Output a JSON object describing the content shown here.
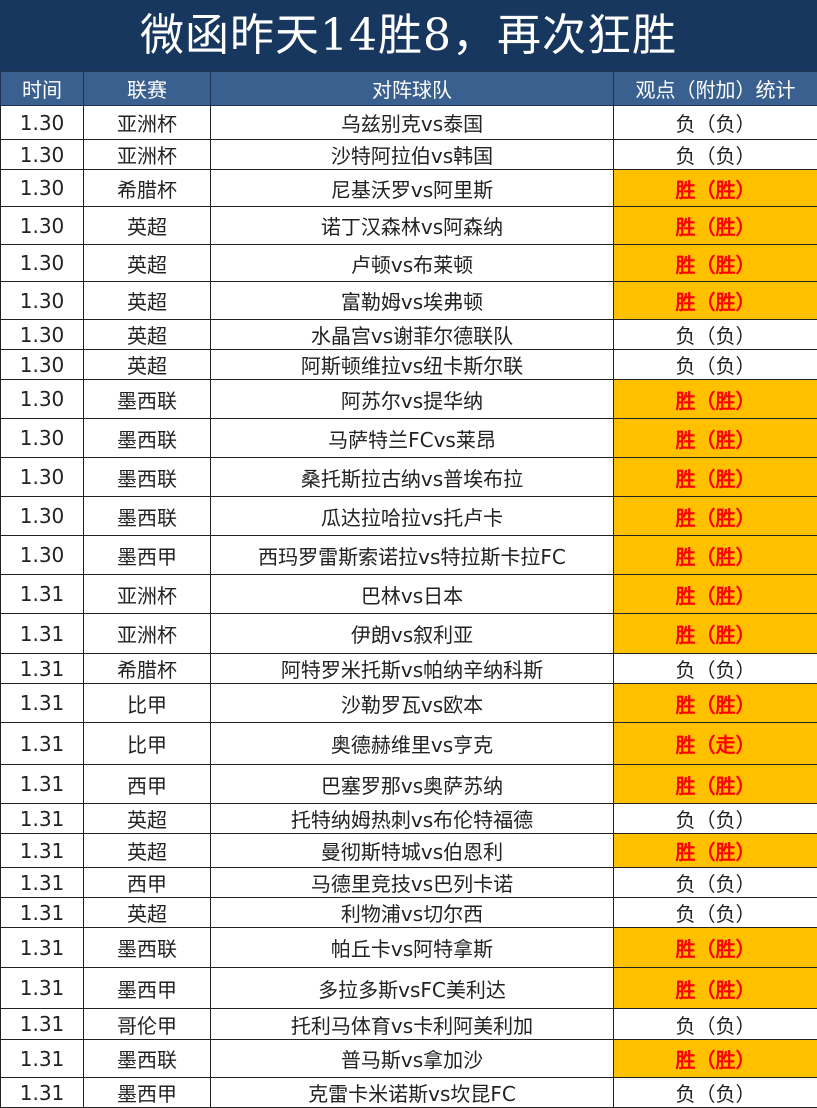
{
  "title": "微函昨天14胜8，再次狂胜",
  "headers": [
    "时间",
    "联赛",
    "对阵球队",
    "观点（附加）统计"
  ],
  "colors": {
    "title_bg": "#17375E",
    "header_bg": "#3A6090",
    "win_bg": "#FFC000",
    "win_text": "#FF0000"
  },
  "rows": [
    [
      "1.30",
      "亚洲杯",
      "乌兹别克vs泰国",
      "负（负）"
    ],
    [
      "1.30",
      "亚洲杯",
      "沙特阿拉伯vs韩国",
      "负（负）"
    ],
    [
      "1.30",
      "希腊杯",
      "尼基沃罗vs阿里斯",
      "胜（胜）"
    ],
    [
      "1.30",
      "英超",
      "诺丁汉森林vs阿森纳",
      "胜（胜）"
    ],
    [
      "1.30",
      "英超",
      "卢顿vs布莱顿",
      "胜（胜）"
    ],
    [
      "1.30",
      "英超",
      "富勒姆vs埃弗顿",
      "胜（胜）"
    ],
    [
      "1.30",
      "英超",
      "水晶宫vs谢菲尔德联队",
      "负（负）"
    ],
    [
      "1.30",
      "英超",
      "阿斯顿维拉vs纽卡斯尔联",
      "负（负）"
    ],
    [
      "1.30",
      "墨西联",
      "阿苏尔vs提华纳",
      "胜（胜）"
    ],
    [
      "1.30",
      "墨西联",
      "马萨特兰FCvs莱昂",
      "胜（胜）"
    ],
    [
      "1.30",
      "墨西联",
      "桑托斯拉古纳vs普埃布拉",
      "胜（胜）"
    ],
    [
      "1.30",
      "墨西联",
      "瓜达拉哈拉vs托卢卡",
      "胜（胜）"
    ],
    [
      "1.30",
      "墨西甲",
      "西玛罗雷斯索诺拉vs特拉斯卡拉FC",
      "胜（胜）"
    ],
    [
      "1.31",
      "亚洲杯",
      "巴林vs日本",
      "胜（胜）"
    ],
    [
      "1.31",
      "亚洲杯",
      "伊朗vs叙利亚",
      "胜（胜）"
    ],
    [
      "1.31",
      "希腊杯",
      "阿特罗米托斯vs帕纳辛纳科斯",
      "负（负）"
    ],
    [
      "1.31",
      "比甲",
      "沙勒罗瓦vs欧本",
      "胜（胜）"
    ],
    [
      "1.31",
      "比甲",
      "奥德赫维里vs亨克",
      "胜（走）"
    ],
    [
      "1.31",
      "西甲",
      "巴塞罗那vs奥萨苏纳",
      "胜（胜）"
    ],
    [
      "1.31",
      "英超",
      "托特纳姆热刺vs布伦特福德",
      "负（负）"
    ],
    [
      "1.31",
      "英超",
      "曼彻斯特城vs伯恩利",
      "胜（胜）"
    ],
    [
      "1.31",
      "西甲",
      "马德里竞技vs巴列卡诺",
      "负（负）"
    ],
    [
      "1.31",
      "英超",
      "利物浦vs切尔西",
      "负（负）"
    ],
    [
      "1.31",
      "墨西联",
      "帕丘卡vs阿特拿斯",
      "胜（胜）"
    ],
    [
      "1.31",
      "墨西甲",
      "多拉多斯vsFC美利达",
      "胜（胜）"
    ],
    [
      "1.31",
      "哥伦甲",
      "托利马体育vs卡利阿美利加",
      "负（负）"
    ],
    [
      "1.31",
      "墨西联",
      "普马斯vs拿加沙",
      "胜（胜）"
    ],
    [
      "1.31",
      "墨西甲",
      "克雷卡米诺斯vs坎昆FC",
      "负（负）"
    ]
  ]
}
